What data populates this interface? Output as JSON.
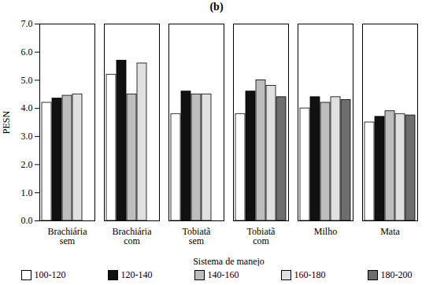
{
  "chart_data": {
    "type": "bar",
    "title": "(b)",
    "x_label": "Sistema de manejo",
    "y_label": "PESN",
    "categories": [
      "Brachiária sem",
      "Brachiária com",
      "Tobiatã sem",
      "Tobiatã com",
      "Milho",
      "Mata"
    ],
    "series": [
      {
        "name": "100-120",
        "color": "#ffffff",
        "values": [
          4.2,
          5.2,
          3.8,
          3.8,
          4.0,
          3.5
        ]
      },
      {
        "name": "120-140",
        "color": "#111111",
        "values": [
          4.35,
          5.7,
          4.6,
          4.6,
          4.4,
          3.7
        ]
      },
      {
        "name": "140-160",
        "color": "#bdbdbd",
        "values": [
          4.45,
          4.5,
          4.5,
          5.0,
          4.2,
          3.9
        ]
      },
      {
        "name": "160-180",
        "color": "#e0e0e0",
        "values": [
          4.5,
          5.6,
          4.5,
          4.8,
          4.4,
          3.8
        ]
      },
      {
        "name": "180-200",
        "color": "#6e6e6e",
        "values": [
          null,
          null,
          null,
          4.4,
          4.3,
          3.75
        ]
      }
    ],
    "ylim": [
      0,
      7
    ],
    "yticks": [
      0,
      1,
      2,
      3,
      4,
      5,
      6,
      7
    ],
    "grid": false,
    "legend": "bottom"
  }
}
